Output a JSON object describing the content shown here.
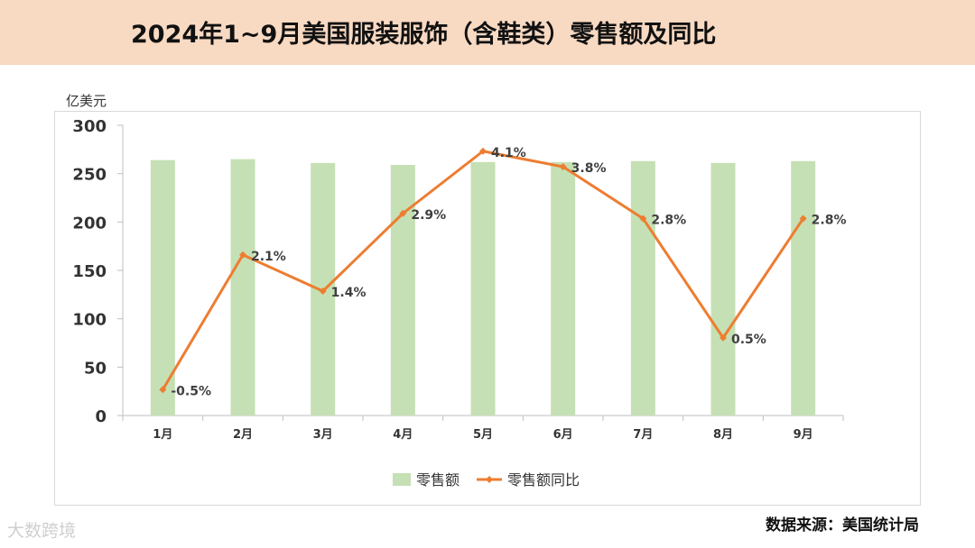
{
  "header": {
    "title": "2024年1~9月美国服装服饰（含鞋类）零售额及同比"
  },
  "footer": {
    "source": "数据来源：美国统计局",
    "watermark": "大数跨境"
  },
  "colors": {
    "title_bg": "#f8d9c2",
    "bar": "#c5e0b4",
    "line": "#ed7d31"
  },
  "chart_data": {
    "type": "bar",
    "title": "2024年1~9月美国服装服饰（含鞋类）零售额及同比",
    "ylabel": "亿美元",
    "ylim": [
      0,
      300
    ],
    "yticks": [
      0,
      50,
      100,
      150,
      200,
      250,
      300
    ],
    "categories": [
      "1月",
      "2月",
      "3月",
      "4月",
      "5月",
      "6月",
      "7月",
      "8月",
      "9月"
    ],
    "legend_position": "bottom",
    "series": [
      {
        "name": "零售额",
        "type": "bar",
        "values": [
          264,
          265,
          261,
          259,
          262,
          262,
          263,
          261,
          263
        ]
      },
      {
        "name": "零售额同比",
        "type": "line",
        "values": [
          -0.5,
          2.1,
          1.4,
          2.9,
          4.1,
          3.8,
          2.8,
          0.5,
          2.8
        ],
        "labels": [
          "-0.5%",
          "2.1%",
          "1.4%",
          "2.9%",
          "4.1%",
          "3.8%",
          "2.8%",
          "0.5%",
          "2.8%"
        ],
        "ylim": [
          -1,
          4.6
        ]
      }
    ]
  }
}
